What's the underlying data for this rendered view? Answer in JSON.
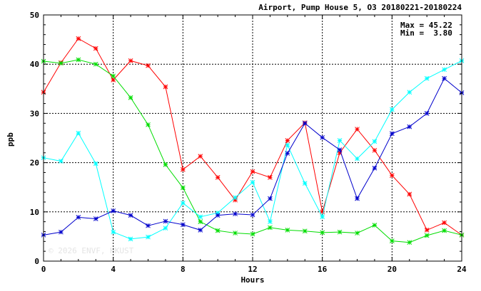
{
  "chart_data": {
    "type": "line",
    "title": "Airport, Pump House 5, O3 20180221-20180224",
    "xlabel": "Hours",
    "ylabel": "ppb",
    "xlim": [
      0,
      24
    ],
    "ylim": [
      0,
      50
    ],
    "xticks": [
      0,
      4,
      8,
      12,
      16,
      20,
      24
    ],
    "yticks": [
      0,
      10,
      20,
      30,
      40,
      50
    ],
    "grid": true,
    "stats": {
      "max_label": "Max = 45.22",
      "min_label": "Min =  3.80"
    },
    "watermark": "© 2026  ENVF, HKUST",
    "x": [
      0,
      1,
      2,
      3,
      4,
      5,
      6,
      7,
      8,
      9,
      10,
      11,
      12,
      13,
      14,
      15,
      16,
      17,
      18,
      19,
      20,
      21,
      22,
      23,
      24
    ],
    "series": [
      {
        "color": "#ff0000",
        "values": [
          34.3,
          40.3,
          45.2,
          43.2,
          36.8,
          40.7,
          39.7,
          35.4,
          18.6,
          21.3,
          17.0,
          12.4,
          18.2,
          17.0,
          24.5,
          28.1,
          10.0,
          22.0,
          26.8,
          22.5,
          17.4,
          13.6,
          6.3,
          7.8,
          5.3
        ]
      },
      {
        "color": "#00dd00",
        "values": [
          40.6,
          40.2,
          40.9,
          40.0,
          37.6,
          33.2,
          27.7,
          19.6,
          14.9,
          8.0,
          6.2,
          5.7,
          5.5,
          6.8,
          6.3,
          6.1,
          5.8,
          5.9,
          5.7,
          7.3,
          4.1,
          3.8,
          5.2,
          6.2,
          5.3
        ]
      },
      {
        "color": "#00ffff",
        "values": [
          21.0,
          20.3,
          26.0,
          19.8,
          5.9,
          4.5,
          4.9,
          6.7,
          11.8,
          9.0,
          9.8,
          12.9,
          16.0,
          8.0,
          23.6,
          15.8,
          9.0,
          24.5,
          20.8,
          24.3,
          30.8,
          34.3,
          37.1,
          38.9,
          40.7
        ]
      },
      {
        "color": "#0000cc",
        "values": [
          5.3,
          5.9,
          8.9,
          8.6,
          10.2,
          9.3,
          7.2,
          8.1,
          7.4,
          6.3,
          9.3,
          9.6,
          9.4,
          12.7,
          21.9,
          28.0,
          25.1,
          22.6,
          12.7,
          18.9,
          25.9,
          27.3,
          30.0,
          37.1,
          34.2
        ]
      }
    ]
  }
}
